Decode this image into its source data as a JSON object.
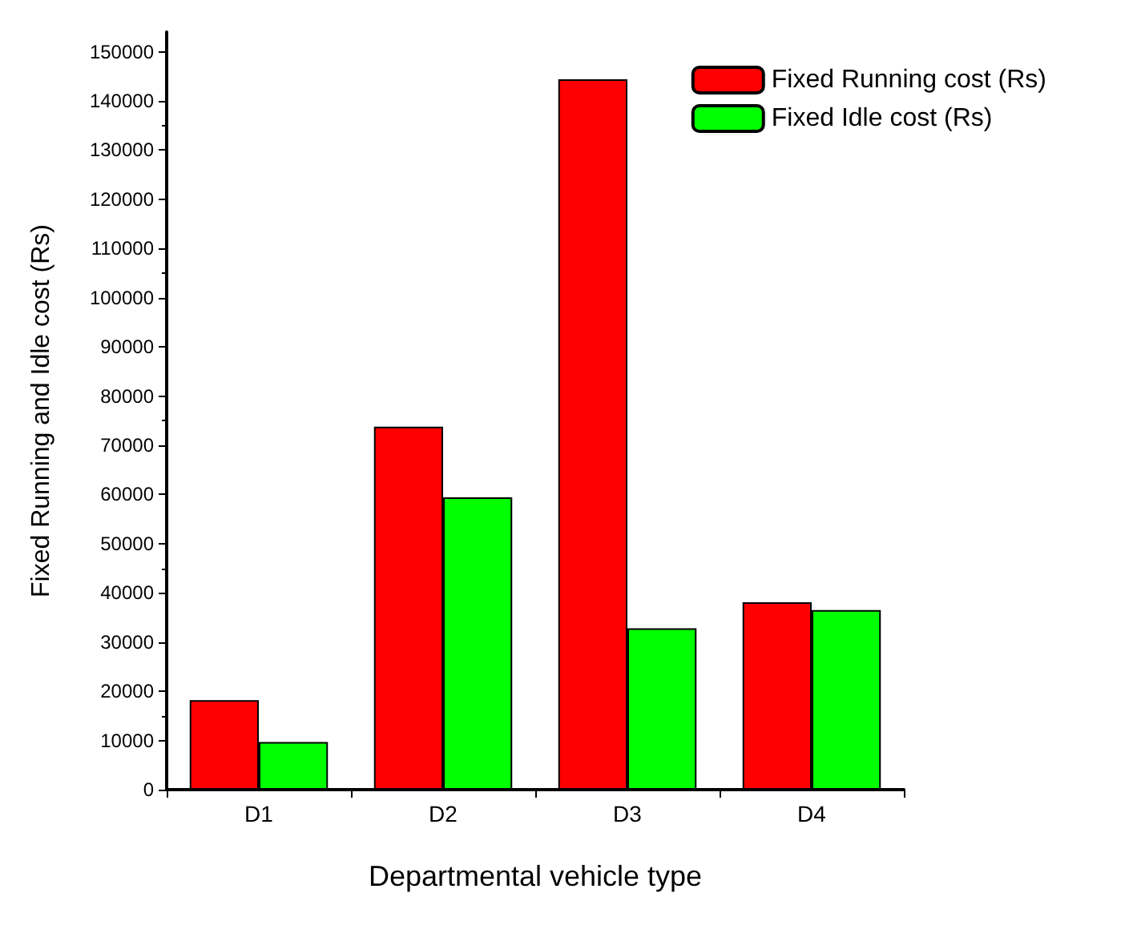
{
  "chart_data": {
    "type": "bar",
    "xlabel": "Departmental vehicle type",
    "ylabel": "Fixed Running and Idle cost (Rs)",
    "categories": [
      "D1",
      "D2",
      "D3",
      "D4"
    ],
    "series": [
      {
        "name": "Fixed Running cost (Rs)",
        "color": "#ff0000",
        "values": [
          18200,
          73800,
          144400,
          38100
        ]
      },
      {
        "name": "Fixed Idle cost (Rs)",
        "color": "#00ff00",
        "values": [
          9700,
          59400,
          32800,
          36500
        ]
      }
    ],
    "ylim": [
      0,
      154000
    ],
    "yticks": [
      0,
      10000,
      20000,
      30000,
      40000,
      50000,
      60000,
      70000,
      80000,
      90000,
      100000,
      110000,
      120000,
      130000,
      140000,
      150000
    ],
    "grid": false,
    "legend": "top right"
  }
}
